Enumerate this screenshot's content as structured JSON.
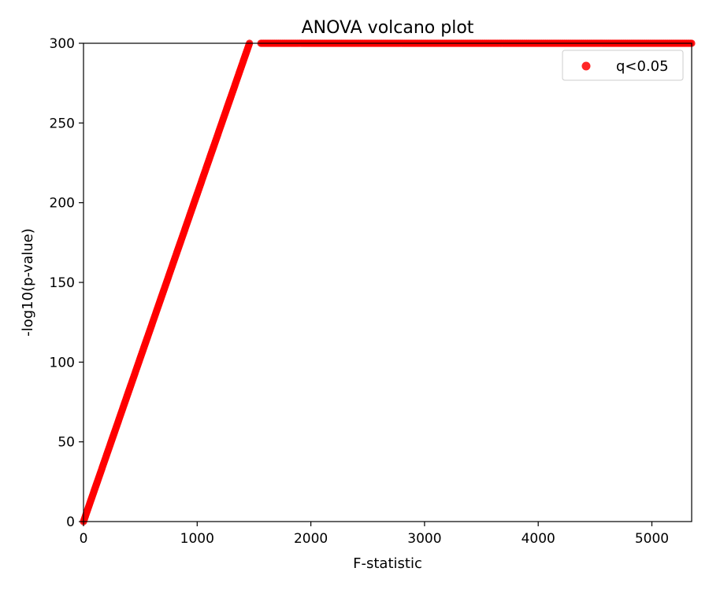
{
  "chart_data": {
    "type": "scatter",
    "title": "ANOVA volcano plot",
    "xlabel": "F-statistic",
    "ylabel": "-log10(p-value)",
    "xlim": [
      0,
      5350
    ],
    "ylim": [
      0,
      300
    ],
    "x_ticks": [
      0,
      1000,
      2000,
      3000,
      4000,
      5000
    ],
    "y_ticks": [
      0,
      50,
      100,
      150,
      200,
      250,
      300
    ],
    "grid": false,
    "legend": {
      "placement": "top-right",
      "entries": [
        {
          "label": "q<0.05",
          "color": "#ff0000"
        }
      ]
    },
    "series": [
      {
        "name": "q<0.05",
        "color": "#ff0000",
        "segments": [
          {
            "x_start": 0,
            "y_start": 0,
            "x_end": 1460,
            "y_end": 300
          },
          {
            "x_start": 1560,
            "y_start": 300,
            "x_end": 5350,
            "y_end": 300
          }
        ]
      }
    ]
  }
}
